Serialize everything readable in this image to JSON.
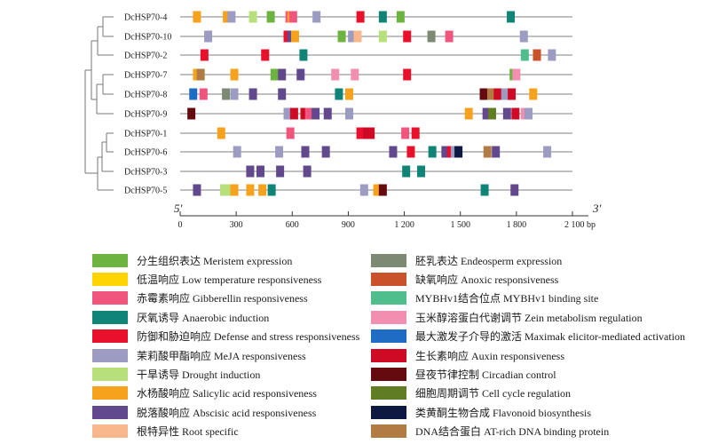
{
  "genes": [
    {
      "name": "DcHSP70-4",
      "motifs": [
        [
          90,
          "salicylic"
        ],
        [
          250,
          "salicylic"
        ],
        [
          275,
          "meja"
        ],
        [
          390,
          "drought"
        ],
        [
          485,
          "meristem"
        ],
        [
          585,
          "gibberellin"
        ],
        [
          595,
          "salicylic"
        ],
        [
          605,
          "gibberellin"
        ],
        [
          730,
          "meja"
        ],
        [
          965,
          "defense"
        ],
        [
          1085,
          "anaerobic"
        ],
        [
          1180,
          "meristem"
        ],
        [
          1770,
          "anaerobic"
        ]
      ]
    },
    {
      "name": "DcHSP70-10",
      "motifs": [
        [
          150,
          "meja"
        ],
        [
          575,
          "defense"
        ],
        [
          595,
          "abscisic"
        ],
        [
          615,
          "salicylic"
        ],
        [
          865,
          "meristem"
        ],
        [
          920,
          "meja"
        ],
        [
          950,
          "root"
        ],
        [
          1085,
          "drought"
        ],
        [
          1215,
          "defense"
        ],
        [
          1345,
          "endosperm"
        ],
        [
          1440,
          "gibberellin"
        ],
        [
          1840,
          "meja"
        ]
      ]
    },
    {
      "name": "DcHSP70-2",
      "motifs": [
        [
          130,
          "defense"
        ],
        [
          455,
          "defense"
        ],
        [
          660,
          "anaerobic"
        ],
        [
          1845,
          "mybhv1"
        ],
        [
          1910,
          "anoxic"
        ],
        [
          1990,
          "meja"
        ]
      ]
    },
    {
      "name": "DcHSP70-7",
      "motifs": [
        [
          90,
          "salicylic"
        ],
        [
          110,
          "atrich"
        ],
        [
          290,
          "salicylic"
        ],
        [
          505,
          "meristem"
        ],
        [
          545,
          "abscisic"
        ],
        [
          645,
          "abscisic"
        ],
        [
          830,
          "zein"
        ],
        [
          935,
          "zein"
        ],
        [
          1215,
          "defense"
        ],
        [
          1785,
          "meristem"
        ],
        [
          1800,
          "zein"
        ]
      ]
    },
    {
      "name": "DcHSP70-8",
      "motifs": [
        [
          70,
          "maximak"
        ],
        [
          125,
          "gibberellin"
        ],
        [
          245,
          "endosperm"
        ],
        [
          290,
          "meja"
        ],
        [
          390,
          "abscisic"
        ],
        [
          545,
          "abscisic"
        ],
        [
          850,
          "anaerobic"
        ],
        [
          905,
          "salicylic"
        ],
        [
          1625,
          "circadian"
        ],
        [
          1665,
          "atrich"
        ],
        [
          1700,
          "auxin"
        ],
        [
          1740,
          "meja"
        ],
        [
          1775,
          "auxin"
        ],
        [
          1890,
          "salicylic"
        ]
      ]
    },
    {
      "name": "DcHSP70-9",
      "motifs": [
        [
          60,
          "circadian"
        ],
        [
          575,
          "meja"
        ],
        [
          610,
          "auxin"
        ],
        [
          665,
          "auxin"
        ],
        [
          690,
          "gibberellin"
        ],
        [
          725,
          "abscisic"
        ],
        [
          790,
          "abscisic"
        ],
        [
          905,
          "meja"
        ],
        [
          1545,
          "salicylic"
        ],
        [
          1640,
          "abscisic"
        ],
        [
          1670,
          "cellcycle"
        ],
        [
          1750,
          "abscisic"
        ],
        [
          1795,
          "auxin"
        ],
        [
          1845,
          "zein"
        ],
        [
          1865,
          "meja"
        ]
      ]
    },
    {
      "name": "DcHSP70-1",
      "motifs": [
        [
          220,
          "salicylic"
        ],
        [
          590,
          "gibberellin"
        ],
        [
          965,
          "defense"
        ],
        [
          1000,
          "auxin"
        ],
        [
          1020,
          "auxin"
        ],
        [
          1205,
          "gibberellin"
        ],
        [
          1260,
          "defense"
        ]
      ]
    },
    {
      "name": "DcHSP70-6",
      "motifs": [
        [
          305,
          "meja"
        ],
        [
          530,
          "meja"
        ],
        [
          670,
          "abscisic"
        ],
        [
          780,
          "abscisic"
        ],
        [
          1140,
          "abscisic"
        ],
        [
          1235,
          "defense"
        ],
        [
          1350,
          "anaerobic"
        ],
        [
          1420,
          "abscisic"
        ],
        [
          1450,
          "defense"
        ],
        [
          1470,
          "meja"
        ],
        [
          1490,
          "flavonoid"
        ],
        [
          1645,
          "atrich"
        ],
        [
          1690,
          "abscisic"
        ],
        [
          1965,
          "meja"
        ]
      ]
    },
    {
      "name": "DcHSP70-3",
      "motifs": [
        [
          375,
          "abscisic"
        ],
        [
          430,
          "abscisic"
        ],
        [
          535,
          "abscisic"
        ],
        [
          680,
          "abscisic"
        ],
        [
          1210,
          "anaerobic"
        ],
        [
          1290,
          "anaerobic"
        ]
      ]
    },
    {
      "name": "DcHSP70-5",
      "motifs": [
        [
          90,
          "abscisic"
        ],
        [
          235,
          "drought"
        ],
        [
          265,
          "drought"
        ],
        [
          290,
          "salicylic"
        ],
        [
          375,
          "salicylic"
        ],
        [
          440,
          "salicylic"
        ],
        [
          490,
          "anaerobic"
        ],
        [
          985,
          "meja"
        ],
        [
          1055,
          "salicylic"
        ],
        [
          1085,
          "circadian"
        ],
        [
          1630,
          "anaerobic"
        ],
        [
          1790,
          "abscisic"
        ]
      ]
    }
  ],
  "axis": {
    "ticks": [
      "0",
      "300",
      "600",
      "900",
      "1 200",
      "1 500",
      "1 800",
      "2 100 bp"
    ],
    "end5": "5′",
    "end3": "3′",
    "max": 2100
  },
  "legend": [
    {
      "key": "meristem",
      "label": "分生组织表达 Meristem expression",
      "color": "#6db33f"
    },
    {
      "key": "endosperm",
      "label": "胚乳表达 Endeosperm expression",
      "color": "#7d8a73"
    },
    {
      "key": "lowtemp",
      "label": "低温响应 Low temperature responsiveness",
      "color": "#ffd400"
    },
    {
      "key": "anoxic",
      "label": "缺氧响应 Anoxic responsiveness",
      "color": "#c9522b"
    },
    {
      "key": "gibberellin",
      "label": "赤霉素响应 Gibberellin responsiveness",
      "color": "#f0567d"
    },
    {
      "key": "mybhv1",
      "label": "MYBHv1结合位点 MYBHv1 binding site",
      "color": "#4fbe8c"
    },
    {
      "key": "anaerobic",
      "label": "厌氧诱导 Anaerobic induction",
      "color": "#118478"
    },
    {
      "key": "zein",
      "label": "玉米醇溶蛋白代谢调节 Zein metabolism regulation",
      "color": "#f28fb0"
    },
    {
      "key": "defense",
      "label": "防御和胁迫响应 Defense and stress responsiveness",
      "color": "#e8102a"
    },
    {
      "key": "maximak",
      "label": "最大激发子介导的激活 Maximak elicitor-mediated activation",
      "color": "#1f6cc4"
    },
    {
      "key": "meja",
      "label": "茉莉酸甲酯响应 MeJA responsiveness",
      "color": "#9c9bc1"
    },
    {
      "key": "auxin",
      "label": "生长素响应 Auxin responsiveness",
      "color": "#cf0a24"
    },
    {
      "key": "drought",
      "label": "干旱诱导 Drought induction",
      "color": "#b7e07a"
    },
    {
      "key": "circadian",
      "label": "昼夜节律控制 Circadian control",
      "color": "#650b0f"
    },
    {
      "key": "salicylic",
      "label": "水杨酸响应 Salicylic acid responsiveness",
      "color": "#f7a21c"
    },
    {
      "key": "cellcycle",
      "label": "细胞周期调节 Cell cycle regulation",
      "color": "#617d24"
    },
    {
      "key": "abscisic",
      "label": "脱落酸响应 Abscisic acid responsiveness",
      "color": "#62498e"
    },
    {
      "key": "flavonoid",
      "label": "类黄酮生物合成 Flavonoid biosynthesis",
      "color": "#0d1940"
    },
    {
      "key": "root",
      "label": "根特异性 Root specific",
      "color": "#f8b88b"
    },
    {
      "key": "atrich",
      "label": "DNA结合蛋白 AT-rich DNA binding protein",
      "color": "#b07c43"
    }
  ]
}
